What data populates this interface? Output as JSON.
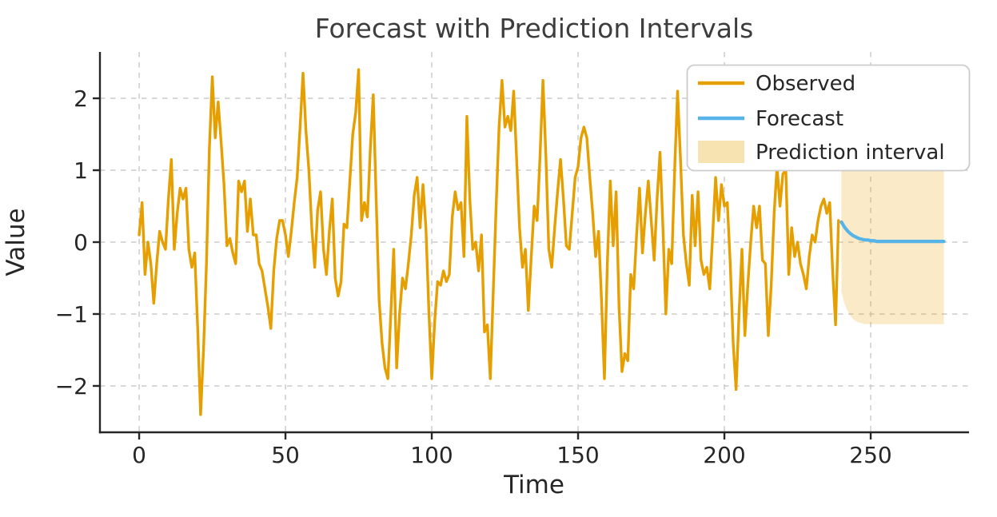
{
  "figure": {
    "title": "Forecast with Prediction Intervals",
    "xlabel": "Time",
    "ylabel": "Value"
  },
  "legend": {
    "observed_label": "Observed",
    "forecast_label": "Forecast",
    "interval_label": "Prediction interval"
  },
  "colors": {
    "observed": "#E69F00",
    "forecast": "#56B4E9",
    "interval_fill": "rgba(230,159,0,0.22)",
    "legend_patch_fill": "rgba(230,159,0,0.30)",
    "grid": "#cccccc",
    "spine": "#262626",
    "tick_text": "#262626",
    "title_text": "#3d3d3d",
    "legend_border": "#cccccc"
  },
  "chart_data": {
    "type": "line",
    "title": "Forecast with Prediction Intervals",
    "xlabel": "Time",
    "ylabel": "Value",
    "xlim": [
      -13.4,
      283.6
    ],
    "ylim": [
      -2.645,
      2.645
    ],
    "x_ticks": [
      0,
      50,
      100,
      150,
      200,
      250
    ],
    "x_tick_labels": [
      "0",
      "50",
      "100",
      "150",
      "200",
      "250"
    ],
    "y_ticks": [
      -2,
      -1,
      0,
      1,
      2
    ],
    "y_tick_labels": [
      "−2",
      "−1",
      "0",
      "1",
      "2"
    ],
    "grid": "dashed",
    "legend_position": "upper right",
    "series": [
      {
        "name": "Observed",
        "kind": "line",
        "x_start": 0,
        "x_step": 1,
        "values": [
          0.1,
          0.55,
          -0.45,
          0.0,
          -0.3,
          -0.85,
          -0.3,
          0.15,
          0.0,
          -0.1,
          0.6,
          1.15,
          -0.1,
          0.4,
          0.75,
          0.6,
          0.75,
          -0.1,
          -0.35,
          -0.15,
          -1.2,
          -2.4,
          -1.5,
          -0.3,
          1.3,
          2.3,
          1.45,
          1.95,
          1.4,
          0.8,
          -0.05,
          0.05,
          -0.15,
          -0.3,
          0.85,
          0.7,
          0.85,
          0.15,
          0.6,
          0.1,
          0.1,
          -0.3,
          -0.4,
          -0.65,
          -0.9,
          -1.2,
          -0.4,
          0.05,
          0.3,
          0.3,
          0.1,
          -0.2,
          0.15,
          0.55,
          0.9,
          1.6,
          2.35,
          1.55,
          1.0,
          0.2,
          -0.35,
          0.45,
          0.7,
          -0.1,
          -0.45,
          0.15,
          0.6,
          -0.5,
          -0.75,
          -0.55,
          0.25,
          0.2,
          0.85,
          1.5,
          1.8,
          2.4,
          0.3,
          0.55,
          0.35,
          1.3,
          2.05,
          0.6,
          -0.8,
          -1.4,
          -1.75,
          -1.9,
          -1.0,
          -0.1,
          -1.75,
          -1.0,
          -0.5,
          -0.65,
          -0.3,
          0.1,
          0.65,
          0.9,
          0.2,
          0.8,
          0.2,
          -0.95,
          -1.9,
          -1.1,
          -0.55,
          -0.6,
          -0.4,
          -0.55,
          -0.45,
          0.35,
          0.7,
          0.45,
          0.55,
          -0.2,
          1.75,
          0.6,
          -0.1,
          0.0,
          -0.4,
          0.1,
          -1.25,
          -1.15,
          -1.9,
          -0.7,
          0.5,
          1.6,
          2.25,
          1.6,
          1.75,
          1.55,
          2.1,
          1.15,
          0.2,
          -0.35,
          -0.1,
          -0.95,
          -0.2,
          0.5,
          0.3,
          1.2,
          2.25,
          1.2,
          -0.1,
          -0.35,
          0.2,
          0.7,
          1.15,
          0.6,
          -0.05,
          -0.1,
          0.4,
          0.9,
          1.05,
          1.45,
          1.6,
          1.45,
          0.9,
          0.4,
          -0.2,
          0.15,
          -0.8,
          -1.9,
          -0.3,
          0.85,
          -0.05,
          0.7,
          -0.9,
          -1.8,
          -1.55,
          -1.65,
          -0.45,
          -0.65,
          0.1,
          0.75,
          -0.15,
          0.4,
          0.85,
          0.3,
          -0.25,
          0.6,
          1.25,
          0.2,
          -1.0,
          -0.1,
          -0.3,
          1.0,
          2.1,
          1.15,
          0.1,
          -0.3,
          -0.6,
          0.65,
          -0.05,
          0.7,
          -0.25,
          -0.45,
          -0.35,
          -0.65,
          0.1,
          0.9,
          0.3,
          0.8,
          0.5,
          0.55,
          -0.3,
          -1.4,
          -2.05,
          -1.0,
          -0.1,
          -1.3,
          -0.6,
          0.0,
          0.5,
          0.2,
          0.5,
          -0.25,
          -0.3,
          -1.3,
          -0.6,
          0.4,
          1.05,
          0.5,
          0.95,
          1.0,
          -0.45,
          0.2,
          -0.2,
          0.0,
          -0.3,
          -0.45,
          -0.65,
          -0.2,
          0.1,
          0.0,
          0.3,
          0.5,
          0.6,
          0.4,
          0.55,
          -0.4,
          -1.15,
          0.3
        ]
      },
      {
        "name": "Forecast",
        "kind": "line",
        "x_start": 240,
        "x_step": 1,
        "values": [
          0.28,
          0.21,
          0.16,
          0.12,
          0.09,
          0.07,
          0.05,
          0.04,
          0.03,
          0.03,
          0.02,
          0.02,
          0.01,
          0.01,
          0.01,
          0.01,
          0.01,
          0.01,
          0.01,
          0.01,
          0.01,
          0.01,
          0.01,
          0.01,
          0.01,
          0.01,
          0.01,
          0.01,
          0.01,
          0.01,
          0.01,
          0.01,
          0.01,
          0.01,
          0.01,
          0.01
        ]
      },
      {
        "name": "Prediction interval",
        "kind": "band",
        "x_start": 240,
        "x_step": 1,
        "upper": [
          1.05,
          1.11,
          1.13,
          1.14,
          1.14,
          1.14,
          1.14,
          1.14,
          1.14,
          1.14,
          1.14,
          1.14,
          1.14,
          1.14,
          1.14,
          1.14,
          1.14,
          1.14,
          1.14,
          1.14,
          1.14,
          1.14,
          1.14,
          1.14,
          1.14,
          1.14,
          1.14,
          1.14,
          1.14,
          1.14,
          1.14,
          1.14,
          1.14,
          1.14,
          1.14,
          1.14
        ],
        "lower": [
          -0.7,
          -0.85,
          -0.95,
          -1.02,
          -1.07,
          -1.1,
          -1.12,
          -1.13,
          -1.14,
          -1.14,
          -1.14,
          -1.14,
          -1.14,
          -1.14,
          -1.14,
          -1.14,
          -1.14,
          -1.14,
          -1.14,
          -1.14,
          -1.14,
          -1.14,
          -1.14,
          -1.14,
          -1.14,
          -1.14,
          -1.14,
          -1.14,
          -1.14,
          -1.14,
          -1.14,
          -1.14,
          -1.14,
          -1.14,
          -1.14,
          -1.14
        ]
      }
    ]
  }
}
